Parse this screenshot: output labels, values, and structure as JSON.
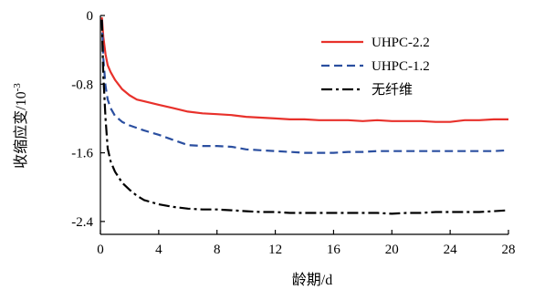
{
  "chart_data": {
    "type": "line",
    "xlabel": "龄期/d",
    "ylabel_main": "收缩应变/10",
    "ylabel_exponent": "-3",
    "xlim": [
      0,
      28
    ],
    "ylim": [
      -2.55,
      0
    ],
    "x_ticks": [
      0,
      4,
      8,
      12,
      16,
      20,
      24,
      28
    ],
    "x_tick_labels": [
      "0",
      "4",
      "8",
      "12",
      "16",
      "20",
      "24",
      "28"
    ],
    "y_ticks": [
      0,
      -0.8,
      -1.6,
      -2.4
    ],
    "y_tick_labels": [
      "0",
      "-0.8",
      "-1.6",
      "-2.4"
    ],
    "grid": false,
    "legend_position": "top-right",
    "series": [
      {
        "name": "UHPC-2.2",
        "color": "#e8312b",
        "dash": "solid",
        "x": [
          0.1,
          0.2,
          0.35,
          0.5,
          0.7,
          1,
          1.5,
          2,
          2.5,
          3,
          4,
          5,
          6,
          7,
          8,
          9,
          10,
          11,
          12,
          13,
          14,
          15,
          16,
          17,
          18,
          19,
          20,
          21,
          22,
          23,
          24,
          25,
          26,
          27,
          28
        ],
        "y": [
          -0.02,
          -0.25,
          -0.45,
          -0.58,
          -0.66,
          -0.75,
          -0.86,
          -0.93,
          -0.98,
          -1.0,
          -1.04,
          -1.08,
          -1.12,
          -1.14,
          -1.15,
          -1.16,
          -1.18,
          -1.19,
          -1.2,
          -1.21,
          -1.21,
          -1.22,
          -1.22,
          -1.22,
          -1.23,
          -1.22,
          -1.23,
          -1.23,
          -1.23,
          -1.24,
          -1.24,
          -1.22,
          -1.22,
          -1.21,
          -1.21
        ]
      },
      {
        "name": "UHPC-1.2",
        "color": "#2b4fa0",
        "dash": "dashed",
        "x": [
          0.1,
          0.2,
          0.35,
          0.5,
          0.7,
          1,
          1.5,
          2,
          2.5,
          3,
          4,
          5,
          6,
          7,
          8,
          9,
          10,
          11,
          12,
          13,
          14,
          15,
          16,
          17,
          18,
          19,
          20,
          21,
          22,
          23,
          24,
          25,
          26,
          27,
          28
        ],
        "y": [
          -0.05,
          -0.5,
          -0.82,
          -0.98,
          -1.08,
          -1.17,
          -1.24,
          -1.28,
          -1.31,
          -1.34,
          -1.39,
          -1.45,
          -1.51,
          -1.52,
          -1.52,
          -1.53,
          -1.56,
          -1.57,
          -1.58,
          -1.59,
          -1.6,
          -1.6,
          -1.6,
          -1.59,
          -1.59,
          -1.58,
          -1.58,
          -1.58,
          -1.58,
          -1.58,
          -1.58,
          -1.58,
          -1.58,
          -1.58,
          -1.57
        ]
      },
      {
        "name": "无纤维",
        "color": "#000000",
        "dash": "dashdot",
        "x": [
          0.1,
          0.2,
          0.35,
          0.5,
          0.7,
          1,
          1.5,
          2,
          2.5,
          3,
          4,
          5,
          6,
          7,
          8,
          9,
          10,
          11,
          12,
          13,
          14,
          15,
          16,
          17,
          18,
          19,
          20,
          21,
          22,
          23,
          24,
          25,
          26,
          27,
          28
        ],
        "y": [
          -0.05,
          -0.7,
          -1.2,
          -1.55,
          -1.7,
          -1.82,
          -1.95,
          -2.03,
          -2.1,
          -2.15,
          -2.2,
          -2.23,
          -2.25,
          -2.26,
          -2.26,
          -2.27,
          -2.28,
          -2.29,
          -2.29,
          -2.3,
          -2.3,
          -2.3,
          -2.3,
          -2.3,
          -2.3,
          -2.3,
          -2.31,
          -2.3,
          -2.3,
          -2.29,
          -2.29,
          -2.29,
          -2.29,
          -2.28,
          -2.27
        ]
      }
    ]
  }
}
